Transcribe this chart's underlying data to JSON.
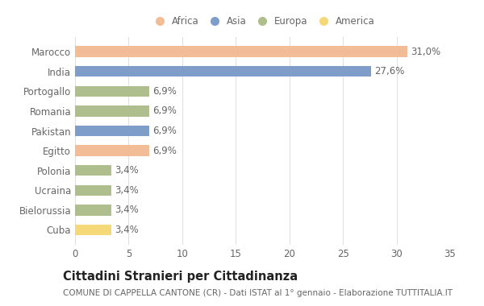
{
  "countries": [
    "Marocco",
    "India",
    "Portogallo",
    "Romania",
    "Pakistan",
    "Egitto",
    "Polonia",
    "Ucraina",
    "Bielorussia",
    "Cuba"
  ],
  "values": [
    31.0,
    27.6,
    6.9,
    6.9,
    6.9,
    6.9,
    3.4,
    3.4,
    3.4,
    3.4
  ],
  "labels": [
    "31,0%",
    "27,6%",
    "6,9%",
    "6,9%",
    "6,9%",
    "6,9%",
    "3,4%",
    "3,4%",
    "3,4%",
    "3,4%"
  ],
  "colors": [
    "#F2BC96",
    "#7E9DC9",
    "#AEBE8C",
    "#AEBE8C",
    "#7E9DC9",
    "#F2BC96",
    "#AEBE8C",
    "#AEBE8C",
    "#AEBE8C",
    "#F5D878"
  ],
  "legend": {
    "Africa": "#F2BC96",
    "Asia": "#7E9DC9",
    "Europa": "#AEBE8C",
    "America": "#F5D878"
  },
  "xlim": [
    0,
    35
  ],
  "xticks": [
    0,
    5,
    10,
    15,
    20,
    25,
    30,
    35
  ],
  "title": "Cittadini Stranieri per Cittadinanza",
  "subtitle": "COMUNE DI CAPPELLA CANTONE (CR) - Dati ISTAT al 1° gennaio - Elaborazione TUTTITALIA.IT",
  "background_color": "#ffffff",
  "bar_height": 0.55,
  "label_fontsize": 8.5,
  "tick_fontsize": 8.5,
  "title_fontsize": 10.5,
  "subtitle_fontsize": 7.5,
  "grid_color": "#e0e0e0",
  "text_color": "#666666",
  "title_color": "#222222"
}
